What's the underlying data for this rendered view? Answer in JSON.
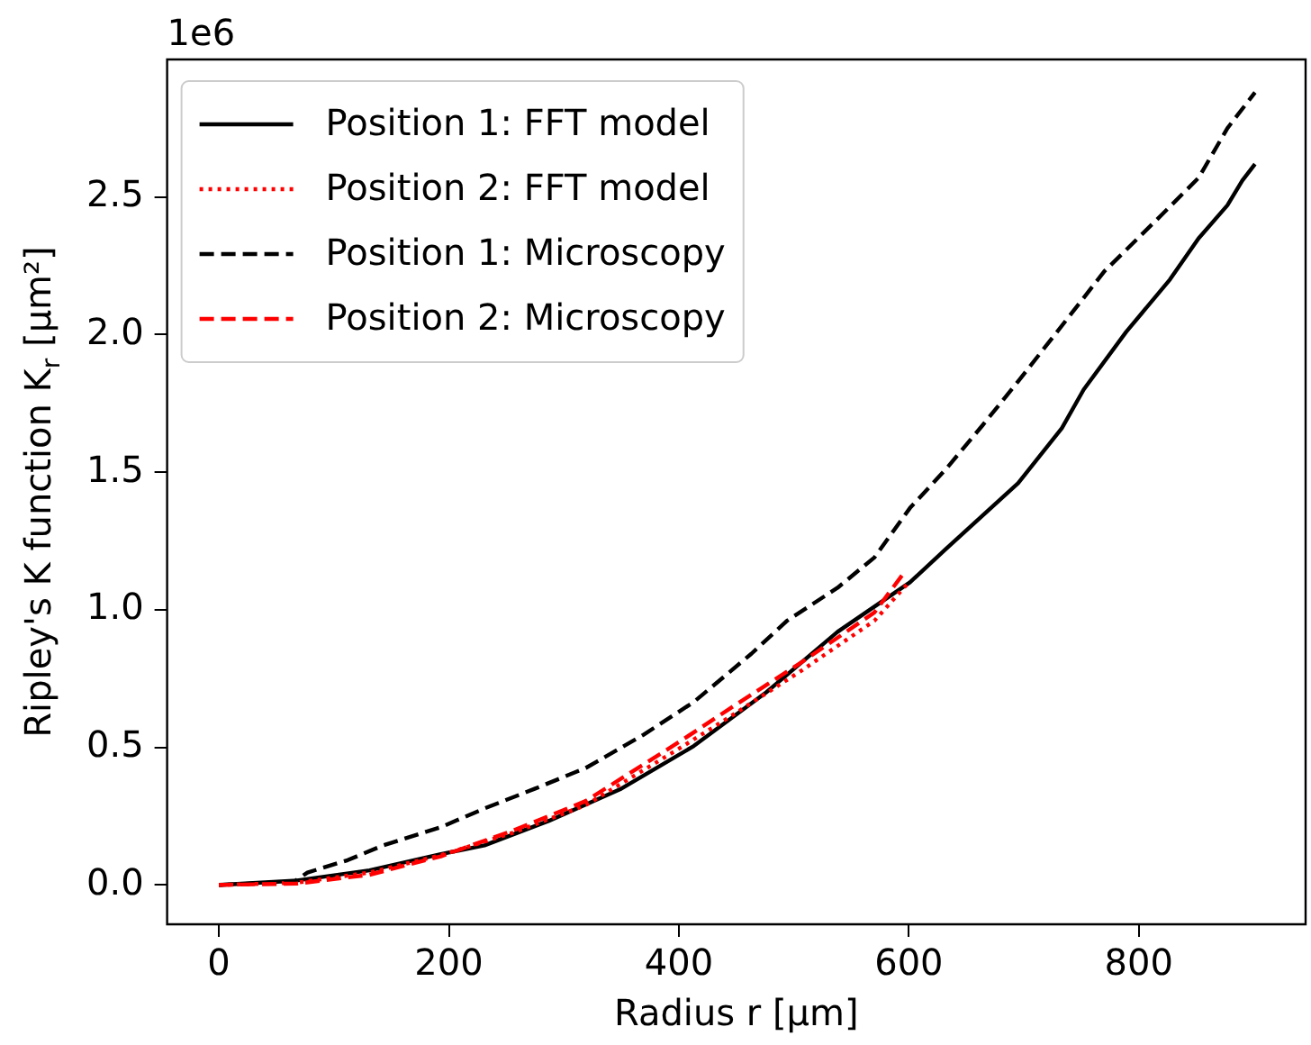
{
  "chart_data": {
    "type": "line",
    "xlabel": "Radius r [µm]",
    "ylabel": "Ripley's K function K$_{r}$ [µm²]",
    "annotations": [
      "1e6"
    ],
    "xlim": [
      -45,
      945
    ],
    "xticks": [
      0,
      200,
      400,
      600,
      800
    ],
    "ylim": [
      -0.143,
      3.0
    ],
    "yticks": [
      {
        "value": 0,
        "label": "0.0"
      },
      {
        "value": 0.5,
        "label": "0.5"
      },
      {
        "value": 1,
        "label": "1.0"
      },
      {
        "value": 1.5,
        "label": "1.5"
      },
      {
        "value": 2,
        "label": "2.0"
      },
      {
        "value": 2.5,
        "label": "2.5"
      }
    ],
    "grid": false,
    "legend": "top left",
    "marker": "none",
    "series": [
      {
        "name": "Position 1: FFT model",
        "color": "#000000",
        "line_style": "solid",
        "x": [
          0,
          68,
          131,
          193,
          231,
          287,
          350,
          413,
          476,
          538,
          601,
          632,
          695,
          733,
          752,
          789,
          827,
          852,
          877,
          890,
          901
        ],
        "values": [
          0,
          0.016,
          0.053,
          0.112,
          0.144,
          0.233,
          0.35,
          0.505,
          0.7,
          0.92,
          1.1,
          1.22,
          1.46,
          1.66,
          1.8,
          2.01,
          2.2,
          2.35,
          2.47,
          2.56,
          2.62
        ]
      },
      {
        "name": "Position 2: FFT model",
        "color": "#ff0000",
        "line_style": "dotted",
        "x": [
          0,
          68,
          131,
          193,
          256,
          319,
          400,
          444,
          507,
          570,
          600
        ],
        "values": [
          0,
          0.008,
          0.045,
          0.108,
          0.19,
          0.29,
          0.495,
          0.61,
          0.78,
          0.96,
          1.1
        ]
      },
      {
        "name": "Position 1: Microscopy",
        "color": "#000000",
        "line_style": "dashed",
        "x": [
          0,
          65,
          77,
          112,
          143,
          193,
          231,
          275,
          319,
          369,
          413,
          463,
          494,
          538,
          570,
          601,
          632,
          664,
          695,
          727,
          770,
          821,
          852,
          877,
          901
        ],
        "values": [
          0,
          0.011,
          0.045,
          0.09,
          0.144,
          0.21,
          0.278,
          0.35,
          0.425,
          0.545,
          0.665,
          0.84,
          0.96,
          1.08,
          1.19,
          1.37,
          1.51,
          1.67,
          1.83,
          2.0,
          2.23,
          2.44,
          2.57,
          2.75,
          2.88
        ]
      },
      {
        "name": "Position 2: Microscopy",
        "color": "#ff0000",
        "line_style": "dashed",
        "x": [
          0,
          68,
          131,
          193,
          256,
          319,
          400,
          444,
          507,
          570,
          595
        ],
        "values": [
          0,
          0.005,
          0.037,
          0.104,
          0.198,
          0.305,
          0.519,
          0.64,
          0.81,
          0.99,
          1.13
        ]
      }
    ]
  }
}
